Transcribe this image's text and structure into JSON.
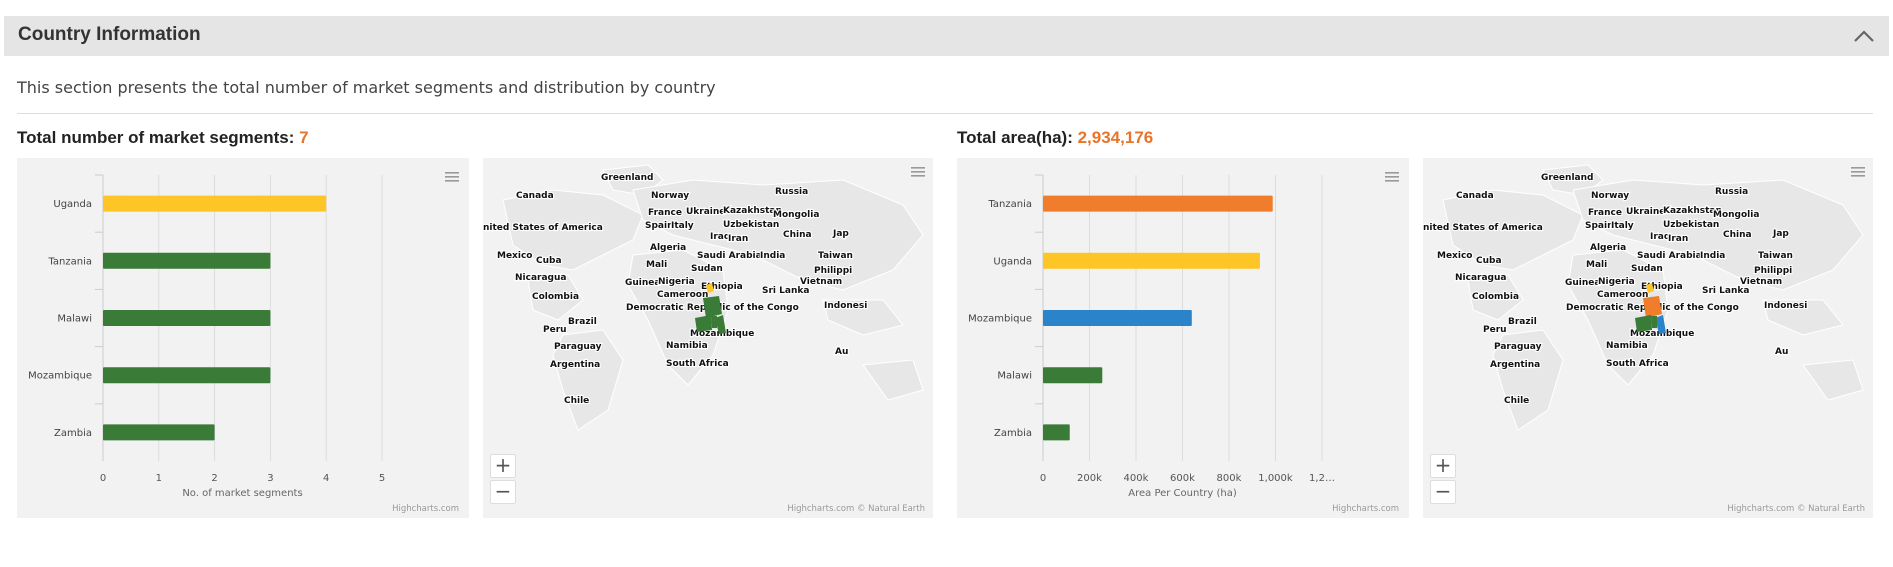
{
  "section": {
    "title": "Country Information",
    "description": "This section presents the total number of market segments and distribution by country"
  },
  "kpi_segments": {
    "label": "Total number of market segments: ",
    "value": "7"
  },
  "kpi_area": {
    "label": "Total area(ha): ",
    "value": "2,934,176"
  },
  "credits": {
    "highcharts": "Highcharts.com",
    "map": "Highcharts.com © Natural Earth"
  },
  "zoom": {
    "in": "+",
    "out": "−"
  },
  "colors": {
    "yellow": "#fdc526",
    "green": "#3a7b37",
    "orange": "#ef7d2b",
    "blue": "#2b84c9",
    "accent": "#e8742a"
  },
  "map_labels": [
    "Greenland",
    "Canada",
    "Norway",
    "Russia",
    "France",
    "Ukraine",
    "Kazakhstan",
    "Mongolia",
    "Spain",
    "Italy",
    "Uzbekistan",
    "nited States of America",
    "Iraq",
    "Iran",
    "China",
    "Jap",
    "Algeria",
    "Mexico",
    "Cuba",
    "Saudi Arabia",
    "India",
    "Taiwan",
    "Mali",
    "Sudan",
    "Philippi",
    "Nicaragua",
    "Guinea",
    "Nigeria",
    "Ethiopia",
    "Vietnam",
    "Colombia",
    "Cameroon",
    "Sri Lanka",
    "Democratic Republic of the Congo",
    "Indonesi",
    "Brazil",
    "Peru",
    "Mozambique",
    "Namibia",
    "Paraguay",
    "Au",
    "Argentina",
    "South Africa",
    "Chile"
  ],
  "chart_data": [
    {
      "type": "bar",
      "orientation": "horizontal",
      "categories": [
        "Uganda",
        "Tanzania",
        "Malawi",
        "Mozambique",
        "Zambia"
      ],
      "values": [
        4,
        3,
        3,
        3,
        2
      ],
      "colors": [
        "#fdc526",
        "#3a7b37",
        "#3a7b37",
        "#3a7b37",
        "#3a7b37"
      ],
      "xlabel": "No. of market segments",
      "ticks": [
        "0",
        "1",
        "2",
        "3",
        "4",
        "5"
      ],
      "xlim": [
        0,
        5
      ],
      "grid": true
    },
    {
      "type": "bar",
      "orientation": "horizontal",
      "categories": [
        "Tanzania",
        "Uganda",
        "Mozambique",
        "Malawi",
        "Zambia"
      ],
      "values": [
        988000,
        933000,
        640000,
        255000,
        115000
      ],
      "colors": [
        "#ef7d2b",
        "#fdc526",
        "#2b84c9",
        "#3a7b37",
        "#3a7b37"
      ],
      "xlabel": "Area Per Country (ha)",
      "ticks": [
        "0",
        "200k",
        "400k",
        "600k",
        "800k",
        "1,000k",
        "1,2…"
      ],
      "xlim": [
        0,
        1200000
      ],
      "grid": true
    }
  ]
}
